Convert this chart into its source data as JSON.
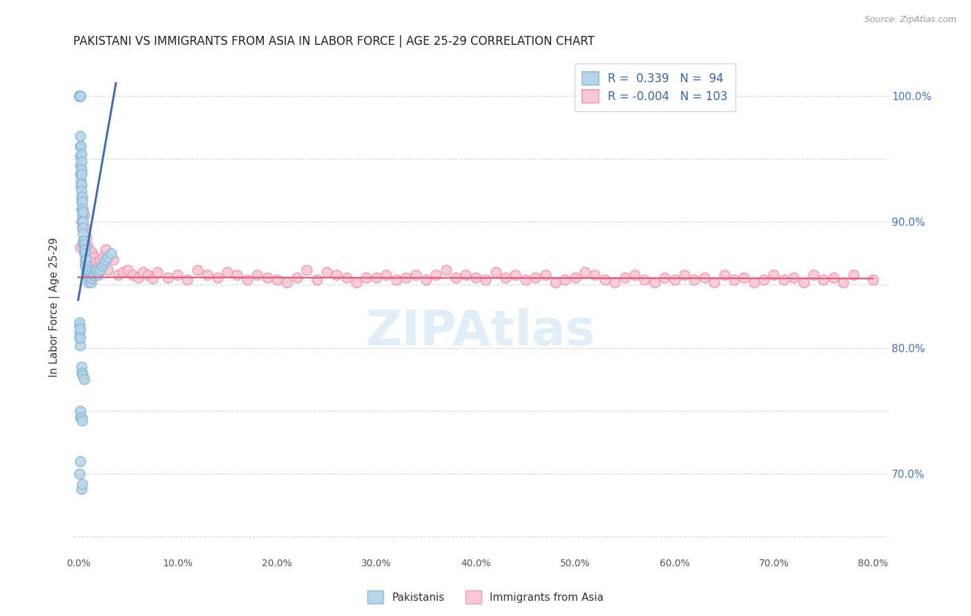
{
  "title": "PAKISTANI VS IMMIGRANTS FROM ASIA IN LABOR FORCE | AGE 25-29 CORRELATION CHART",
  "source": "Source: ZipAtlas.com",
  "ylabel_left": "In Labor Force | Age 25-29",
  "xlabel_ticks": [
    "0.0%",
    "",
    "10.0%",
    "",
    "20.0%",
    "",
    "30.0%",
    "",
    "40.0%",
    "",
    "50.0%",
    "",
    "60.0%",
    "",
    "70.0%",
    "",
    "80.0%"
  ],
  "xlabel_vals": [
    0.0,
    0.05,
    0.1,
    0.15,
    0.2,
    0.25,
    0.3,
    0.35,
    0.4,
    0.45,
    0.5,
    0.55,
    0.6,
    0.65,
    0.7,
    0.75,
    0.8
  ],
  "right_ytick_labels": [
    "100.0%",
    "90.0%",
    "80.0%",
    "70.0%"
  ],
  "right_ytick_vals": [
    1.0,
    0.9,
    0.8,
    0.7
  ],
  "xlim": [
    -0.005,
    0.815
  ],
  "ylim": [
    0.635,
    1.03
  ],
  "legend_label1": "Pakistanis",
  "legend_label2": "Immigrants from Asia",
  "r1": 0.339,
  "n1": 94,
  "r2": -0.004,
  "n2": 103,
  "blue_color": "#8BBCD6",
  "blue_fill": "#B8D4E8",
  "pink_color": "#F09AB0",
  "pink_fill": "#F8C8D4",
  "blue_line_color": "#3B6DB5",
  "pink_line_color": "#E06080",
  "watermark_color": "#C5DCF0",
  "pak_x": [
    0.001,
    0.001,
    0.001,
    0.001,
    0.001,
    0.001,
    0.001,
    0.001,
    0.0015,
    0.0015,
    0.0015,
    0.002,
    0.002,
    0.002,
    0.002,
    0.002,
    0.002,
    0.002,
    0.002,
    0.002,
    0.0025,
    0.0025,
    0.0025,
    0.003,
    0.003,
    0.003,
    0.003,
    0.003,
    0.003,
    0.003,
    0.0035,
    0.0035,
    0.004,
    0.004,
    0.004,
    0.004,
    0.004,
    0.0045,
    0.005,
    0.005,
    0.005,
    0.005,
    0.005,
    0.006,
    0.006,
    0.006,
    0.006,
    0.007,
    0.007,
    0.007,
    0.007,
    0.008,
    0.008,
    0.008,
    0.009,
    0.009,
    0.01,
    0.01,
    0.01,
    0.012,
    0.012,
    0.013,
    0.014,
    0.015,
    0.016,
    0.018,
    0.02,
    0.02,
    0.022,
    0.024,
    0.026,
    0.028,
    0.03,
    0.033,
    0.001,
    0.001,
    0.001,
    0.001,
    0.002,
    0.002,
    0.002,
    0.003,
    0.003,
    0.004,
    0.005,
    0.006,
    0.002,
    0.002,
    0.003,
    0.004,
    0.001,
    0.002,
    0.003,
    0.004
  ],
  "pak_y": [
    1.0,
    1.0,
    1.0,
    1.0,
    1.0,
    1.0,
    1.0,
    1.0,
    1.0,
    1.0,
    1.0,
    1.0,
    1.0,
    1.0,
    1.0,
    0.968,
    0.96,
    0.952,
    0.945,
    0.938,
    0.932,
    0.928,
    0.96,
    0.954,
    0.948,
    0.942,
    0.938,
    0.93,
    0.925,
    0.92,
    0.916,
    0.91,
    0.92,
    0.916,
    0.91,
    0.905,
    0.9,
    0.908,
    0.9,
    0.895,
    0.89,
    0.885,
    0.882,
    0.885,
    0.882,
    0.878,
    0.875,
    0.878,
    0.875,
    0.87,
    0.865,
    0.87,
    0.865,
    0.86,
    0.862,
    0.858,
    0.86,
    0.856,
    0.852,
    0.858,
    0.855,
    0.852,
    0.855,
    0.858,
    0.858,
    0.862,
    0.858,
    0.86,
    0.862,
    0.865,
    0.868,
    0.87,
    0.872,
    0.875,
    0.808,
    0.812,
    0.818,
    0.82,
    0.802,
    0.808,
    0.815,
    0.78,
    0.785,
    0.78,
    0.778,
    0.775,
    0.745,
    0.75,
    0.745,
    0.742,
    0.7,
    0.71,
    0.688,
    0.692
  ],
  "asia_x": [
    0.002,
    0.003,
    0.004,
    0.005,
    0.006,
    0.007,
    0.008,
    0.009,
    0.01,
    0.011,
    0.012,
    0.014,
    0.016,
    0.018,
    0.02,
    0.022,
    0.025,
    0.028,
    0.03,
    0.035,
    0.04,
    0.045,
    0.05,
    0.055,
    0.06,
    0.065,
    0.07,
    0.075,
    0.08,
    0.09,
    0.1,
    0.11,
    0.12,
    0.13,
    0.14,
    0.15,
    0.16,
    0.17,
    0.18,
    0.19,
    0.2,
    0.21,
    0.22,
    0.23,
    0.24,
    0.25,
    0.26,
    0.27,
    0.28,
    0.29,
    0.3,
    0.31,
    0.32,
    0.33,
    0.34,
    0.35,
    0.36,
    0.37,
    0.38,
    0.39,
    0.4,
    0.41,
    0.42,
    0.43,
    0.44,
    0.45,
    0.46,
    0.47,
    0.48,
    0.49,
    0.5,
    0.51,
    0.52,
    0.53,
    0.54,
    0.55,
    0.56,
    0.57,
    0.58,
    0.59,
    0.6,
    0.61,
    0.62,
    0.63,
    0.64,
    0.65,
    0.66,
    0.67,
    0.68,
    0.69,
    0.7,
    0.71,
    0.72,
    0.73,
    0.74,
    0.75,
    0.76,
    0.77,
    0.78,
    0.002,
    0.003,
    0.005,
    0.8
  ],
  "asia_y": [
    0.88,
    0.9,
    0.895,
    0.91,
    0.905,
    0.895,
    0.888,
    0.882,
    0.878,
    0.875,
    0.87,
    0.876,
    0.872,
    0.868,
    0.865,
    0.87,
    0.872,
    0.878,
    0.862,
    0.87,
    0.858,
    0.86,
    0.862,
    0.858,
    0.856,
    0.86,
    0.858,
    0.855,
    0.86,
    0.856,
    0.858,
    0.854,
    0.862,
    0.858,
    0.856,
    0.86,
    0.858,
    0.854,
    0.858,
    0.856,
    0.854,
    0.852,
    0.856,
    0.862,
    0.854,
    0.86,
    0.858,
    0.856,
    0.852,
    0.856,
    0.856,
    0.858,
    0.854,
    0.856,
    0.858,
    0.854,
    0.858,
    0.862,
    0.856,
    0.858,
    0.856,
    0.854,
    0.86,
    0.856,
    0.858,
    0.854,
    0.856,
    0.858,
    0.852,
    0.854,
    0.856,
    0.86,
    0.858,
    0.854,
    0.852,
    0.856,
    0.858,
    0.854,
    0.852,
    0.856,
    0.854,
    0.858,
    0.854,
    0.856,
    0.852,
    0.858,
    0.854,
    0.856,
    0.852,
    0.854,
    0.858,
    0.854,
    0.856,
    0.852,
    0.858,
    0.854,
    0.856,
    0.852,
    0.858,
    1.0,
    0.918,
    0.908,
    0.854
  ],
  "blue_trendline_x": [
    0.0,
    0.038
  ],
  "blue_trendline_y": [
    0.838,
    1.01
  ],
  "pink_trendline_x": [
    0.0,
    0.8
  ],
  "pink_trendline_y": [
    0.856,
    0.855
  ]
}
